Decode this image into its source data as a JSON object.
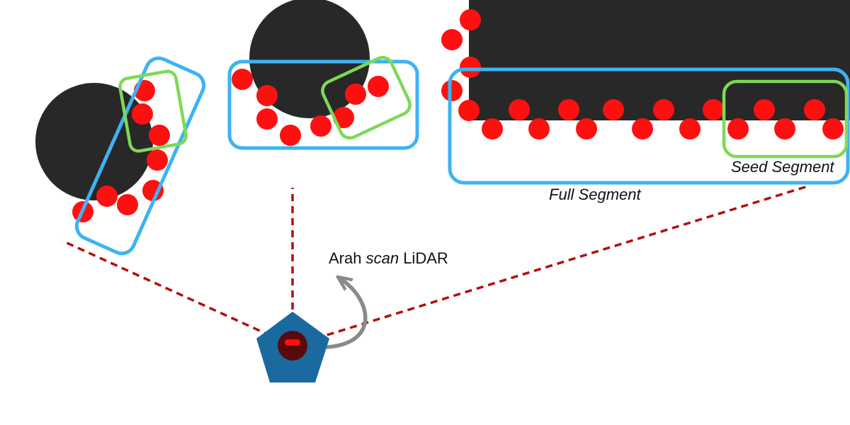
{
  "labels": {
    "seed_segment": "Seed Segment",
    "full_segment": "Full Segment",
    "scan_prefix": "Arah ",
    "scan_italic": "scan",
    "scan_suffix": " LiDAR"
  },
  "colors": {
    "obstacle": "#282828",
    "point": "#ff1010",
    "full_segment": "#3db3f2",
    "seed_segment": "#7ed957",
    "scan_line": "#b30f0f",
    "robot": "#1a6aa0",
    "sensor": "#5a0a0a",
    "arrow": "#8a8a8a"
  }
}
